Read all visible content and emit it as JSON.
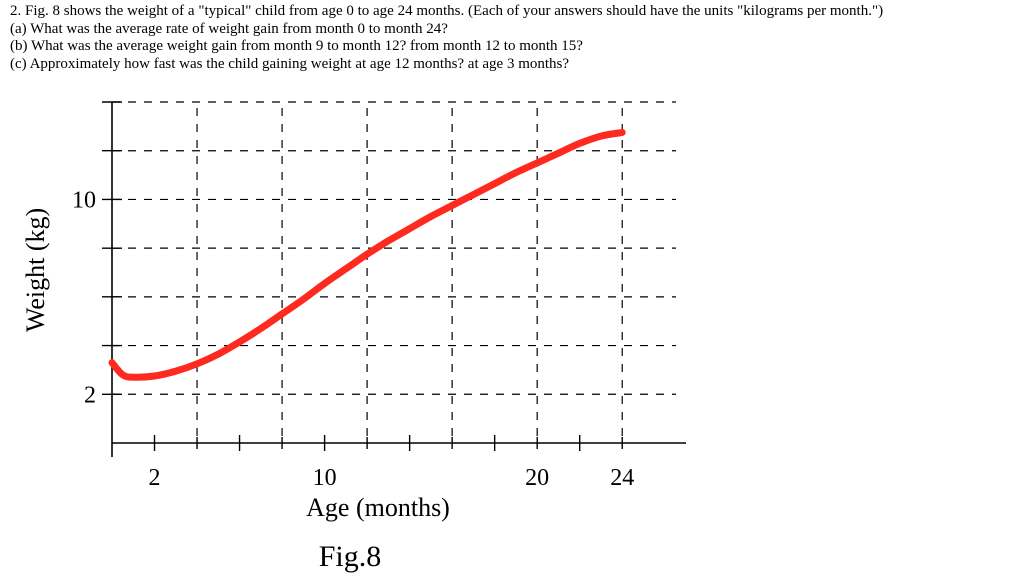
{
  "problem": {
    "header": "2. Fig. 8 shows the weight of a \"typical\" child from age 0 to age 24 months. (Each of your answers should have the units \"kilograms per month.\")",
    "part_a": "(a) What was the average rate of weight gain from month 0 to month 24?",
    "part_b": "(b) What was the average weight gain from month 9 to month 12? from month 12 to month 15?",
    "part_c": "(c) Approximately how fast was the child gaining weight at age 12 months? at age 3 months?"
  },
  "chart_data": {
    "type": "line",
    "title": "",
    "caption": "Fig.8",
    "xlabel": "Age (months)",
    "ylabel": "Weight (kg)",
    "xlim": [
      0,
      27
    ],
    "ylim": [
      0,
      14
    ],
    "grid": true,
    "x_tick_labels": [
      {
        "value": 2,
        "label": "2"
      },
      {
        "value": 10,
        "label": "10"
      },
      {
        "value": 20,
        "label": "20"
      },
      {
        "value": 24,
        "label": "24"
      }
    ],
    "y_tick_labels": [
      {
        "value": 2,
        "label": "2"
      },
      {
        "value": 10,
        "label": "10"
      }
    ],
    "x_grid": [
      4,
      8,
      12,
      16,
      20,
      24
    ],
    "y_grid": [
      2,
      4,
      6,
      8,
      10,
      12,
      14
    ],
    "series": [
      {
        "color": "#ff2a1f",
        "x": [
          0,
          0.5,
          1,
          2,
          3,
          4,
          5,
          6,
          7,
          8,
          9,
          10,
          11,
          12,
          13,
          14,
          15,
          16,
          17,
          18,
          19,
          20,
          21,
          22,
          23,
          24
        ],
        "y": [
          3.3,
          2.8,
          2.7,
          2.75,
          2.95,
          3.25,
          3.65,
          4.15,
          4.7,
          5.3,
          5.9,
          6.55,
          7.15,
          7.75,
          8.3,
          8.8,
          9.3,
          9.75,
          10.2,
          10.65,
          11.1,
          11.5,
          11.9,
          12.3,
          12.6,
          12.75
        ]
      }
    ]
  }
}
